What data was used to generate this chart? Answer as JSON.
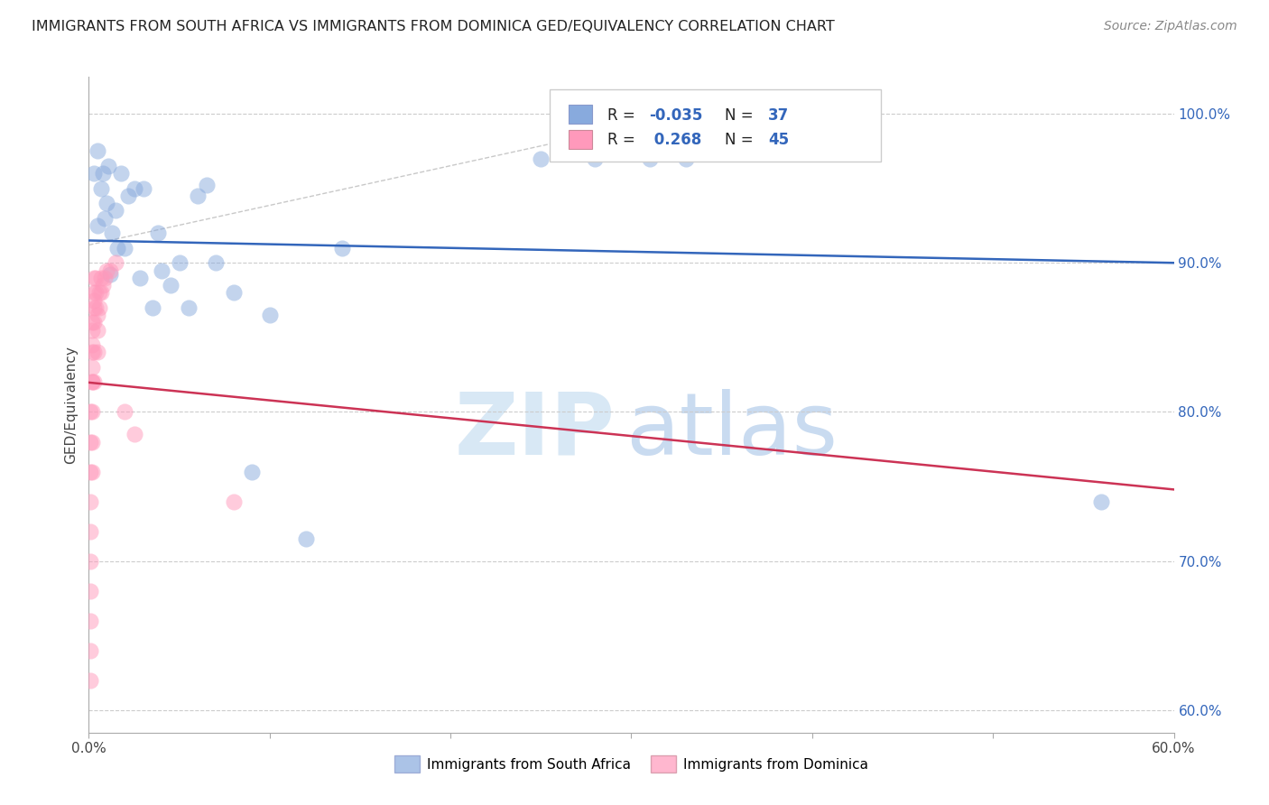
{
  "title": "IMMIGRANTS FROM SOUTH AFRICA VS IMMIGRANTS FROM DOMINICA GED/EQUIVALENCY CORRELATION CHART",
  "source": "Source: ZipAtlas.com",
  "ylabel": "GED/Equivalency",
  "xlim": [
    0.0,
    0.6
  ],
  "ylim": [
    0.585,
    1.025
  ],
  "y_ticks": [
    0.6,
    0.7,
    0.8,
    0.9,
    1.0
  ],
  "y_tick_labels": [
    "60.0%",
    "70.0%",
    "80.0%",
    "90.0%",
    "100.0%"
  ],
  "R_sa": -0.035,
  "N_sa": 37,
  "R_dom": 0.268,
  "N_dom": 45,
  "color_sa": "#88AADD",
  "color_dom": "#FF99BB",
  "trend_sa": "#3366BB",
  "trend_dom": "#CC3355",
  "legend_sa": "Immigrants from South Africa",
  "legend_dom": "Immigrants from Dominica",
  "sa_x": [
    0.003,
    0.005,
    0.007,
    0.008,
    0.009,
    0.01,
    0.011,
    0.013,
    0.015,
    0.016,
    0.018,
    0.02,
    0.022,
    0.025,
    0.028,
    0.03,
    0.035,
    0.038,
    0.04,
    0.045,
    0.05,
    0.055,
    0.06,
    0.065,
    0.07,
    0.08,
    0.09,
    0.1,
    0.12,
    0.14,
    0.25,
    0.28,
    0.31,
    0.33,
    0.56,
    0.005,
    0.012
  ],
  "sa_y": [
    0.96,
    0.975,
    0.95,
    0.96,
    0.93,
    0.94,
    0.965,
    0.92,
    0.935,
    0.91,
    0.96,
    0.91,
    0.945,
    0.95,
    0.89,
    0.95,
    0.87,
    0.92,
    0.895,
    0.885,
    0.9,
    0.87,
    0.945,
    0.952,
    0.9,
    0.88,
    0.76,
    0.865,
    0.715,
    0.91,
    0.97,
    0.97,
    0.97,
    0.97,
    0.74,
    0.925,
    0.892
  ],
  "dom_x": [
    0.001,
    0.001,
    0.001,
    0.001,
    0.001,
    0.001,
    0.001,
    0.001,
    0.001,
    0.001,
    0.002,
    0.002,
    0.002,
    0.002,
    0.002,
    0.002,
    0.002,
    0.002,
    0.002,
    0.002,
    0.003,
    0.003,
    0.003,
    0.003,
    0.003,
    0.003,
    0.003,
    0.004,
    0.004,
    0.004,
    0.005,
    0.005,
    0.005,
    0.006,
    0.006,
    0.007,
    0.007,
    0.008,
    0.009,
    0.01,
    0.012,
    0.015,
    0.02,
    0.025,
    0.08
  ],
  "dom_y": [
    0.62,
    0.64,
    0.66,
    0.68,
    0.7,
    0.72,
    0.74,
    0.76,
    0.78,
    0.8,
    0.76,
    0.78,
    0.8,
    0.82,
    0.82,
    0.83,
    0.84,
    0.845,
    0.855,
    0.86,
    0.82,
    0.84,
    0.86,
    0.87,
    0.875,
    0.88,
    0.89,
    0.87,
    0.88,
    0.89,
    0.84,
    0.855,
    0.865,
    0.87,
    0.88,
    0.88,
    0.89,
    0.885,
    0.89,
    0.895,
    0.895,
    0.9,
    0.8,
    0.785,
    0.74
  ]
}
